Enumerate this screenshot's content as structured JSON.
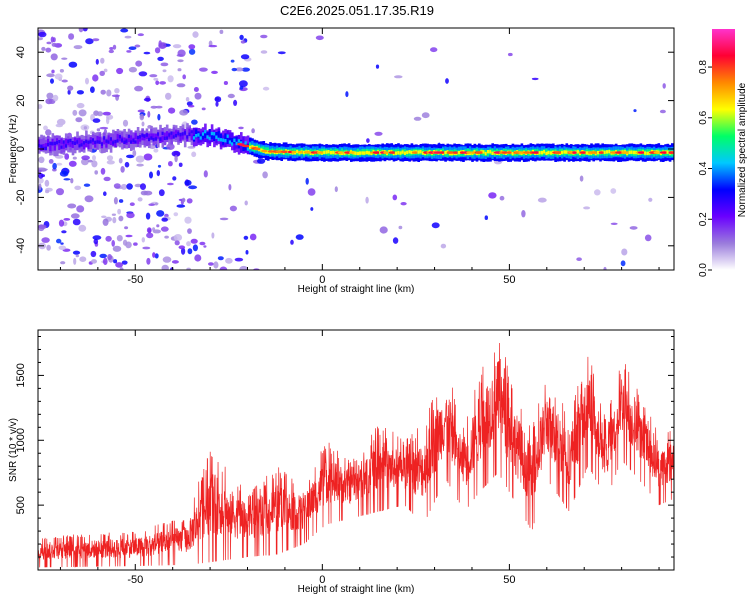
{
  "title": "C2E6.2025.051.17.35.R19",
  "chart_data": [
    {
      "type": "heatmap",
      "xlabel": "Height of straight line (km)",
      "ylabel": "Frequency (Hz)",
      "xlim": [
        -76,
        94
      ],
      "ylim": [
        -50,
        50
      ],
      "x_ticks": [
        -50,
        0,
        50
      ],
      "y_ticks": [
        -40,
        -20,
        0,
        20,
        40
      ],
      "colorbar": {
        "label": "Normalized spectral amplitude",
        "range": [
          0,
          0.95
        ],
        "ticks": [
          0.0,
          0.2,
          0.4,
          0.6,
          0.8
        ],
        "colors": [
          "#ffffff",
          "#9a7bdc",
          "#6a00ff",
          "#0000ff",
          "#00c8ff",
          "#00ff66",
          "#ffff00",
          "#ff8800",
          "#ff0033",
          "#ff33cc"
        ]
      },
      "ridge": [
        {
          "x": -76,
          "freq": 1.5
        },
        {
          "x": -60,
          "freq": 3
        },
        {
          "x": -45,
          "freq": 5
        },
        {
          "x": -33,
          "freq": 6
        },
        {
          "x": -28,
          "freq": 5
        },
        {
          "x": -22,
          "freq": 2
        },
        {
          "x": -15,
          "freq": -1
        },
        {
          "x": 0,
          "freq": -1.5
        },
        {
          "x": 10,
          "freq": -1.5
        },
        {
          "x": 50,
          "freq": -1.5
        },
        {
          "x": 94,
          "freq": -1.5
        }
      ],
      "grid": false
    },
    {
      "type": "line",
      "xlabel": "Height of straight line (km)",
      "ylabel": "SNR (10 * v/v)",
      "xlim": [
        -76,
        94
      ],
      "ylim": [
        0,
        1850
      ],
      "x_ticks": [
        -50,
        0,
        50
      ],
      "y_ticks": [
        500,
        1000,
        1500
      ],
      "color": "#ee2222",
      "envelope": [
        {
          "x": -76,
          "low": 20,
          "high": 260
        },
        {
          "x": -50,
          "low": 30,
          "high": 300
        },
        {
          "x": -36,
          "low": 40,
          "high": 420
        },
        {
          "x": -30,
          "low": 60,
          "high": 950
        },
        {
          "x": -20,
          "low": 100,
          "high": 600
        },
        {
          "x": -12,
          "low": 120,
          "high": 800
        },
        {
          "x": -5,
          "low": 200,
          "high": 650
        },
        {
          "x": 1,
          "low": 350,
          "high": 1000
        },
        {
          "x": 8,
          "low": 400,
          "high": 850
        },
        {
          "x": 15,
          "low": 450,
          "high": 1150
        },
        {
          "x": 22,
          "low": 500,
          "high": 1000
        },
        {
          "x": 27,
          "low": 350,
          "high": 1150
        },
        {
          "x": 33,
          "low": 700,
          "high": 1600
        },
        {
          "x": 38,
          "low": 450,
          "high": 1100
        },
        {
          "x": 42,
          "low": 600,
          "high": 1550
        },
        {
          "x": 47,
          "low": 750,
          "high": 1850
        },
        {
          "x": 51,
          "low": 550,
          "high": 1450
        },
        {
          "x": 56,
          "low": 300,
          "high": 1100
        },
        {
          "x": 60,
          "low": 700,
          "high": 1550
        },
        {
          "x": 66,
          "low": 450,
          "high": 1250
        },
        {
          "x": 71,
          "low": 800,
          "high": 1700
        },
        {
          "x": 76,
          "low": 550,
          "high": 1150
        },
        {
          "x": 80,
          "low": 850,
          "high": 1700
        },
        {
          "x": 86,
          "low": 650,
          "high": 1300
        },
        {
          "x": 90,
          "low": 500,
          "high": 1050
        },
        {
          "x": 94,
          "low": 550,
          "high": 1100
        }
      ],
      "grid": false
    }
  ]
}
